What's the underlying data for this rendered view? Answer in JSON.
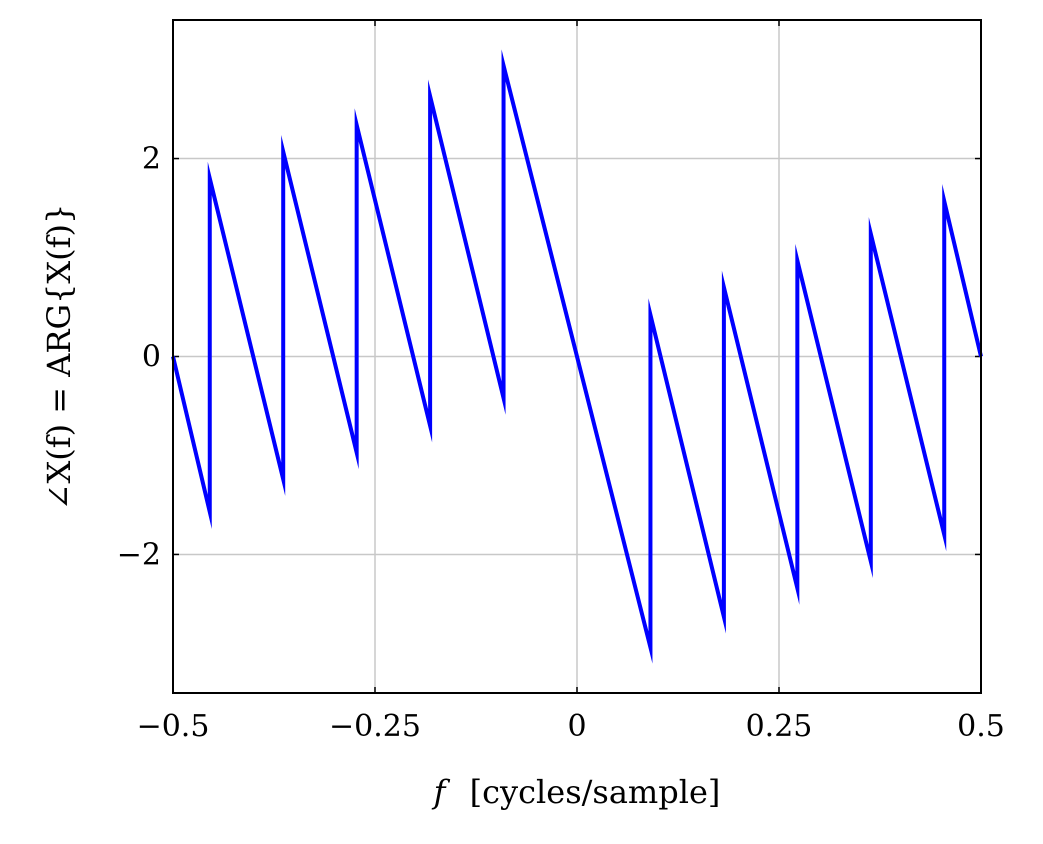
{
  "chart_data": {
    "type": "line",
    "xlabel_symbol": "f",
    "xlabel_units": "[cycles/sample]",
    "ylabel": "∠X(f) = ARG{X(f)}",
    "xlim": [
      -0.5,
      0.5
    ],
    "ylim": [
      -3.4,
      3.4
    ],
    "grid": true,
    "xticks": [
      -0.5,
      -0.25,
      0,
      0.25,
      0.5
    ],
    "xtick_labels": [
      "−0.5",
      "−0.25",
      "0",
      "0.25",
      "0.5"
    ],
    "yticks": [
      -2,
      0,
      2
    ],
    "ytick_labels": [
      "−2",
      "0",
      "2"
    ],
    "line_color": "#0000ff",
    "grid_color": "#c8c8c8",
    "series": [
      {
        "x": [
          -0.5,
          -0.4545,
          -0.4545,
          -0.3636,
          -0.3636,
          -0.2727,
          -0.2727,
          -0.1818,
          -0.1818,
          -0.0909,
          -0.0909,
          0.0909,
          0.0909,
          0.1818,
          0.1818,
          0.2727,
          0.2727,
          0.3636,
          0.3636,
          0.4545,
          0.4545,
          0.5
        ],
        "y": [
          0,
          -1.57,
          1.8,
          -1.24,
          2.07,
          -0.97,
          2.34,
          -0.7,
          2.63,
          -0.42,
          2.94,
          -2.94,
          0.42,
          -2.63,
          0.7,
          -2.34,
          0.97,
          -2.07,
          1.24,
          -1.8,
          1.57,
          0
        ]
      }
    ]
  }
}
